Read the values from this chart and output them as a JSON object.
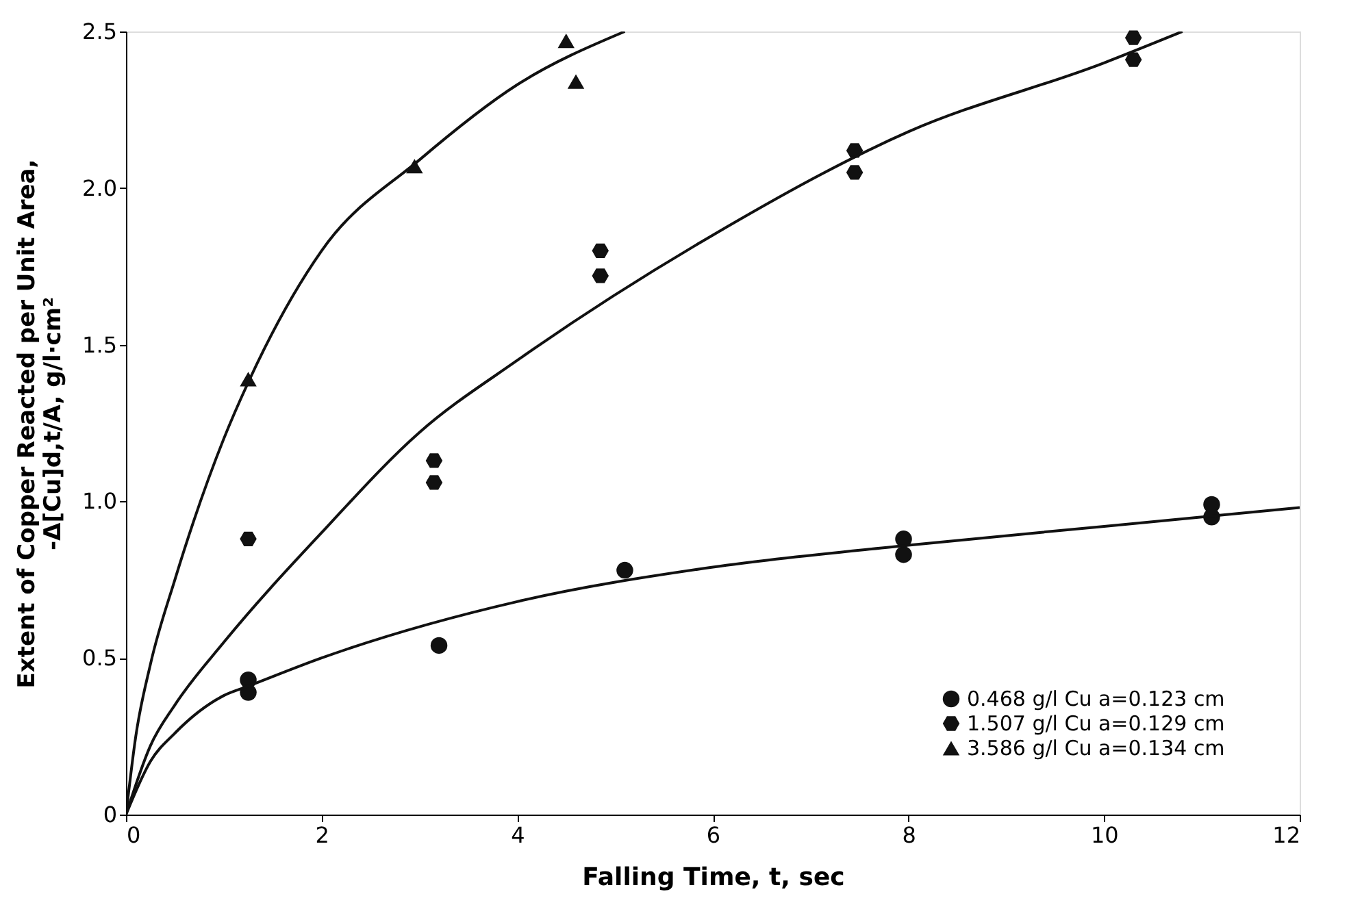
{
  "chart_data": {
    "type": "scatter",
    "xlabel": "Falling  Time, t, sec",
    "ylabel": [
      "Extent of  Copper Reacted per Unit Area,",
      "-Δ[Cu]d,t/A, g/l·cm²"
    ],
    "xlim": [
      0,
      12
    ],
    "xticks": [
      0,
      2,
      4,
      6,
      8,
      10,
      12
    ],
    "ylim": [
      0,
      2.5
    ],
    "yticks": [
      0,
      0.5,
      {
        "value": 1,
        "label": "1.0"
      },
      1.5,
      {
        "value": 2,
        "label": "2.0"
      },
      2.5
    ],
    "grid": false,
    "legend": "bottom right",
    "series": [
      {
        "name": "0.468 g/l Cu    a=0.123 cm",
        "marker": "circle",
        "color": "#111111",
        "x": [
          1.25,
          1.25,
          3.2,
          5.1,
          7.95,
          7.95,
          11.1,
          11.1
        ],
        "values": [
          0.43,
          0.39,
          0.54,
          0.78,
          0.88,
          0.83,
          0.99,
          0.95
        ]
      },
      {
        "name": "1.507 g/l Cu    a=0.129 cm",
        "color": "#111111",
        "x": [
          1.25,
          3.15,
          3.15,
          4.85,
          4.85,
          7.45,
          7.45,
          10.3,
          10.3
        ],
        "values": [
          0.88,
          1.13,
          1.06,
          1.8,
          1.72,
          2.12,
          2.05,
          2.48,
          2.41
        ]
      },
      {
        "name": "3.586 g/l Cu    a=0.134 cm",
        "marker": "triangle",
        "color": "#111111",
        "x": [
          1.25,
          2.95,
          4.5,
          4.6
        ],
        "values": [
          1.39,
          2.07,
          2.47,
          2.34
        ]
      },
      {
        "type": "line",
        "color": "#111111",
        "line_style": "solid",
        "x": [
          0,
          0.25,
          0.5,
          1,
          1.25,
          2,
          4,
          6,
          8,
          10,
          12
        ],
        "values": [
          0,
          0.17,
          0.26,
          0.38,
          0.41,
          0.5,
          0.68,
          0.79,
          0.86,
          0.92,
          0.98
        ]
      },
      {
        "type": "line",
        "color": "#111111",
        "line_style": "solid",
        "x": [
          0,
          0.25,
          0.5,
          1,
          2,
          3,
          4,
          6,
          8,
          10,
          10.8
        ],
        "values": [
          0,
          0.22,
          0.35,
          0.55,
          0.9,
          1.22,
          1.45,
          1.85,
          2.18,
          2.4,
          2.5
        ]
      },
      {
        "type": "line",
        "color": "#111111",
        "line_style": "solid",
        "x": [
          0,
          0.1,
          0.25,
          0.5,
          1,
          1.25,
          2,
          3,
          4,
          5.1
        ],
        "values": [
          0,
          0.25,
          0.48,
          0.75,
          1.2,
          1.38,
          1.8,
          2.09,
          2.33,
          2.5
        ]
      }
    ]
  }
}
